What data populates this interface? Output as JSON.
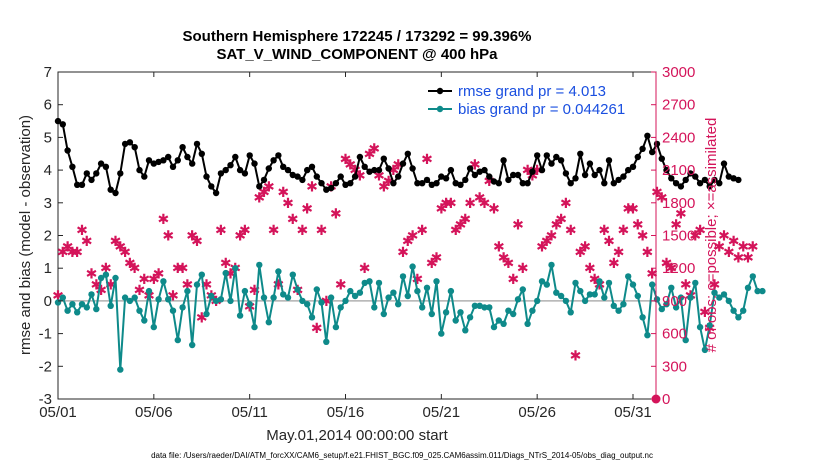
{
  "chart_data": {
    "type": "line",
    "title": "Southern Hemisphere 172245 / 173292 = 99.396%",
    "subtitle": "SAT_V_WIND_COMPONENT @ 400 hPa",
    "xlabel": "May.01,2014 00:00:00 start",
    "ylabel": "rmse and bias (model - observation)",
    "ylabel_right": "# of obs: o=possible; ×=assimilated",
    "footnote": "data file: /Users/raeder/DAI/ATM_forcXX/CAM6_setup/f.e21.FHIST_BGC.f09_025.CAM6assim.011/Diags_NTrS_2014-05/obs_diag_output.nc",
    "xlim": [
      0,
      31.2
    ],
    "ylim": [
      -3,
      7
    ],
    "ylim_right": [
      0,
      3000
    ],
    "x_ticks": [
      0,
      5,
      10,
      15,
      20,
      25,
      30
    ],
    "x_tick_labels": [
      "05/01",
      "05/06",
      "05/11",
      "05/16",
      "05/21",
      "05/26",
      "05/31"
    ],
    "y_ticks": [
      -3,
      -2,
      -1,
      0,
      1,
      2,
      3,
      4,
      5,
      6,
      7
    ],
    "y_tick_labels": [
      "-3",
      "-2",
      "-1",
      "0",
      "1",
      "2",
      "3",
      "4",
      "5",
      "6",
      "7"
    ],
    "y_right_ticks": [
      0,
      300,
      600,
      900,
      1200,
      1500,
      1800,
      2100,
      2400,
      2700,
      3000
    ],
    "y_right_tick_labels": [
      "0",
      "300",
      "600",
      "900",
      "1200",
      "1500",
      "1800",
      "2100",
      "2400",
      "2700",
      "3000"
    ],
    "legend": [
      "rmse grand pr = 4.013",
      "bias grand pr = 0.044261"
    ],
    "legend_position": "top-right",
    "dt": 0.25,
    "series": [
      {
        "name": "rmse",
        "color": "#000000",
        "values": [
          5.5,
          5.4,
          4.6,
          4.1,
          3.55,
          3.55,
          3.9,
          3.7,
          3.9,
          4.2,
          4.1,
          3.4,
          3.3,
          3.9,
          4.8,
          4.85,
          4.7,
          4.0,
          3.8,
          4.3,
          4.2,
          4.25,
          4.3,
          4.4,
          4.1,
          4.3,
          4.7,
          4.4,
          4.2,
          4.8,
          4.5,
          3.8,
          3.5,
          3.3,
          3.9,
          4.0,
          4.15,
          4.4,
          4.0,
          3.9,
          4.45,
          4.2,
          3.5,
          3.7,
          4.05,
          4.3,
          4.45,
          4.1,
          4.0,
          3.85,
          3.8,
          3.7,
          4.0,
          4.1,
          3.8,
          3.6,
          3.4,
          3.45,
          3.6,
          3.8,
          3.55,
          3.6,
          3.8,
          4.4,
          4.1,
          3.95,
          4.0,
          4.0,
          4.35,
          4.05,
          3.6,
          3.8,
          4.2,
          4.5,
          4.05,
          3.6,
          3.6,
          3.7,
          3.55,
          3.6,
          3.8,
          3.75,
          4.0,
          3.6,
          3.55,
          3.7,
          4.05,
          3.85,
          3.95,
          4.0,
          3.8,
          3.65,
          3.6,
          4.3,
          3.7,
          3.85,
          3.85,
          3.6,
          3.6,
          3.95,
          4.45,
          4.0,
          4.45,
          4.2,
          4.4,
          4.3,
          3.9,
          3.6,
          3.75,
          4.5,
          3.85,
          4.2,
          3.85,
          4.0,
          3.6,
          4.3,
          3.6,
          3.7,
          3.8,
          4.0,
          4.1,
          4.4,
          4.65,
          5.05,
          4.55,
          4.8,
          4.35,
          4.0,
          3.75,
          3.6,
          3.5,
          3.7,
          3.9,
          3.8,
          3.6,
          3.7,
          3.5,
          3.7,
          3.6,
          4.2,
          3.8,
          3.75,
          3.7
        ]
      },
      {
        "name": "bias",
        "color": "#0e8a8a",
        "values": [
          -0.05,
          0.1,
          -0.3,
          -0.1,
          -0.35,
          -0.1,
          -0.2,
          0.2,
          -0.25,
          0.7,
          0.8,
          -0.15,
          0.7,
          -2.1,
          0.1,
          0.0,
          0.1,
          -0.3,
          -0.6,
          0.3,
          -0.8,
          0.05,
          0.6,
          0.05,
          -0.3,
          -1.2,
          -0.2,
          0.3,
          -1.35,
          0.5,
          0.8,
          -0.4,
          0.15,
          0.0,
          0.05,
          0.85,
          0.0,
          1.0,
          -0.45,
          0.3,
          -0.1,
          -0.8,
          1.1,
          0.1,
          -0.65,
          0.1,
          0.9,
          0.2,
          0.1,
          0.8,
          0.35,
          0.0,
          -0.1,
          -0.5,
          0.35,
          -0.05,
          -1.25,
          0.1,
          -0.8,
          -0.2,
          0.0,
          0.3,
          0.15,
          0.25,
          0.55,
          0.6,
          -0.2,
          0.55,
          -0.4,
          0.1,
          0.25,
          -0.1,
          0.75,
          0.15,
          1.05,
          0.3,
          -0.2,
          0.4,
          -0.4,
          0.6,
          -1.0,
          -0.35,
          0.3,
          -0.6,
          -0.35,
          -0.9,
          -0.5,
          -0.15,
          -0.15,
          -0.2,
          -0.2,
          -0.8,
          -0.6,
          -0.7,
          -0.3,
          -0.4,
          0.05,
          0.35,
          -0.7,
          -0.3,
          0.0,
          0.6,
          0.5,
          1.1,
          0.25,
          0.15,
          0.0,
          -0.35,
          0.55,
          0.3,
          0.0,
          0.2,
          0.2,
          0.6,
          0.1,
          0.55,
          -0.15,
          -0.3,
          -0.1,
          0.75,
          0.5,
          0.15,
          -0.5,
          -1.05,
          0.5,
          0.05,
          -0.25,
          -0.1,
          0.4,
          -0.2,
          0.1,
          -1.2,
          0.1,
          0.55,
          -0.8,
          -1.5,
          -0.75,
          0.25,
          0.1,
          0.2,
          0.0,
          -0.3,
          -0.5,
          -0.3,
          0.4,
          0.75,
          0.3,
          0.3
        ]
      },
      {
        "name": "# obs assimilated",
        "axis": "right",
        "color": "#d4145a",
        "values": [
          950,
          1350,
          1400,
          1350,
          1350,
          1550,
          1450,
          1150,
          1050,
          1000,
          1200,
          1050,
          1450,
          1400,
          1350,
          1250,
          1200,
          1000,
          1100,
          950,
          1100,
          1150,
          1650,
          1500,
          950,
          1200,
          1200,
          1050,
          1500,
          1450,
          750,
          1050,
          950,
          900,
          1550,
          1250,
          1150,
          1200,
          1500,
          1550,
          850,
          1000,
          1850,
          1900,
          1950,
          1550,
          1050,
          1900,
          1800,
          1650,
          1000,
          1550,
          1750,
          1950,
          650,
          1550,
          900,
          1950,
          1700,
          1050,
          2200,
          2150,
          2100,
          2050,
          1200,
          2250,
          2300,
          2050,
          1950,
          2000,
          2100,
          2150,
          1350,
          1450,
          1500,
          1100,
          1550,
          2200,
          1250,
          1300,
          1750,
          1800,
          1800,
          1550,
          1600,
          1650,
          1800,
          2150,
          1850,
          1800,
          2000,
          1750,
          1400,
          1300,
          1250,
          1100,
          1600,
          1200,
          2100,
          2050,
          2100,
          1400,
          1450,
          1500,
          1600,
          1650,
          1800,
          1550,
          400,
          1350,
          1400,
          1200,
          1100,
          1050,
          1550,
          1450,
          1250,
          1350,
          1550,
          1750,
          1750,
          1600,
          1500,
          1350,
          1150,
          1900,
          1850,
          1250,
          1200,
          1600,
          1700,
          1050,
          950,
          1500,
          1550,
          800,
          650,
          1050,
          1400,
          1500,
          1350,
          1450,
          1300,
          1400,
          1300,
          1400
        ]
      }
    ]
  }
}
